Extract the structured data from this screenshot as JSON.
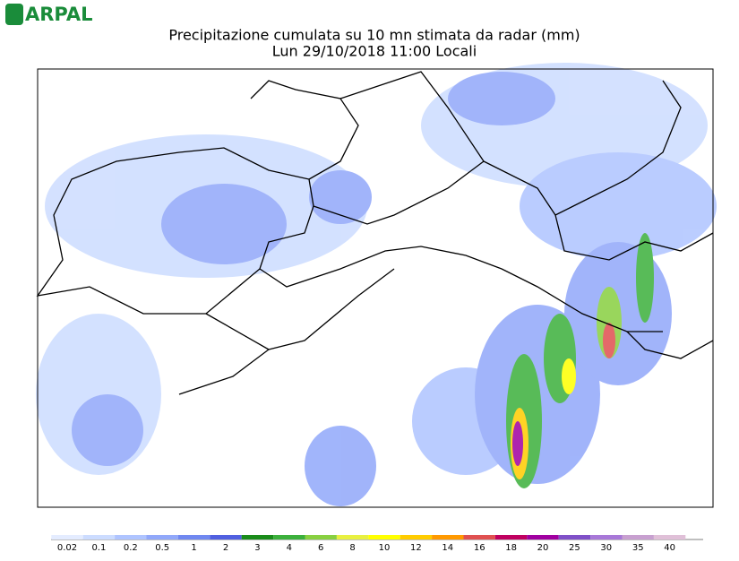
{
  "header": {
    "logo": "ARPAL",
    "title": "Precipitazione cumulata su 10 mn stimata da radar (mm)",
    "subtitle": "Lun 29/10/2018 11:00 Locali"
  },
  "legend": {
    "items": [
      {
        "label": "0.02",
        "color": "#e4ecff"
      },
      {
        "label": "0.1",
        "color": "#ccdcff"
      },
      {
        "label": "0.2",
        "color": "#afc4ff"
      },
      {
        "label": "0.5",
        "color": "#91a8fa"
      },
      {
        "label": "1",
        "color": "#7088f0"
      },
      {
        "label": "2",
        "color": "#5060e0"
      },
      {
        "label": "3",
        "color": "#1a8c1a"
      },
      {
        "label": "4",
        "color": "#3cb03c"
      },
      {
        "label": "6",
        "color": "#88d040"
      },
      {
        "label": "8",
        "color": "#e8f040"
      },
      {
        "label": "10",
        "color": "#ffff00"
      },
      {
        "label": "12",
        "color": "#ffcc00"
      },
      {
        "label": "14",
        "color": "#ff9900"
      },
      {
        "label": "16",
        "color": "#e05050"
      },
      {
        "label": "18",
        "color": "#c00060"
      },
      {
        "label": "20",
        "color": "#a000a0"
      },
      {
        "label": "25",
        "color": "#8050c8"
      },
      {
        "label": "30",
        "color": "#a878d8"
      },
      {
        "label": "35",
        "color": "#c8a0d0"
      },
      {
        "label": "40",
        "color": "#e0c0d8"
      }
    ]
  }
}
